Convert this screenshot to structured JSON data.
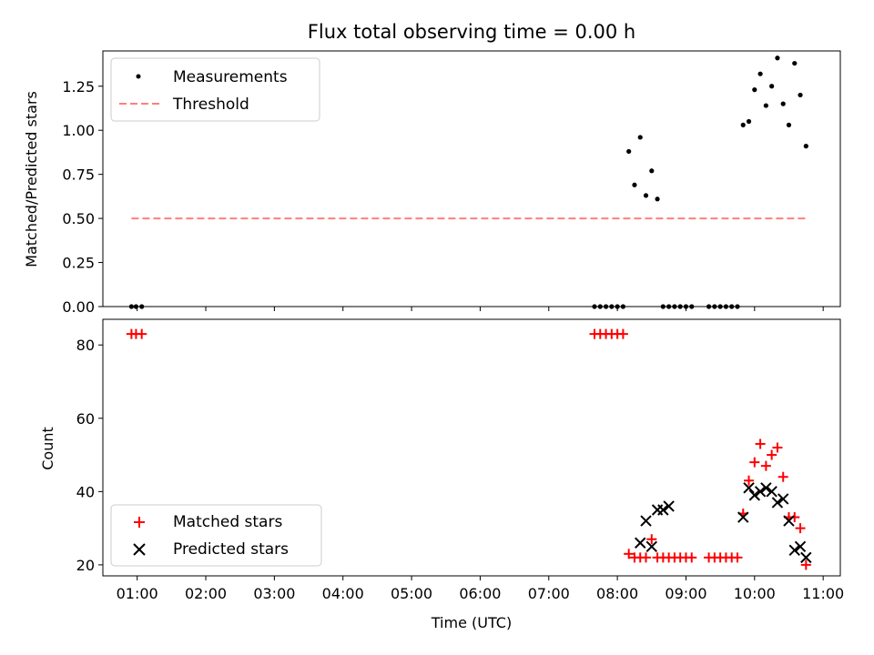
{
  "chart_data": [
    {
      "type": "scatter",
      "title": "Flux total observing time = 0.00 h",
      "xlabel": "",
      "ylabel": "Matched/Predicted stars",
      "ylim": [
        0,
        1.45
      ],
      "xlim": [
        "00:30",
        "11:15"
      ],
      "yticks": [
        0.0,
        0.25,
        0.5,
        0.75,
        1.0,
        1.25
      ],
      "ytick_labels": [
        "0.00",
        "0.25",
        "0.50",
        "0.75",
        "1.00",
        "1.25"
      ],
      "legend_position": "top-left",
      "series": [
        {
          "name": "Measurements",
          "marker": "dot",
          "color": "#000000",
          "x": [
            "00:55",
            "00:59",
            "01:04",
            "07:40",
            "07:45",
            "07:50",
            "07:55",
            "08:00",
            "08:05",
            "08:10",
            "08:15",
            "08:20",
            "08:25",
            "08:30",
            "08:35",
            "08:40",
            "08:45",
            "08:50",
            "08:55",
            "09:00",
            "09:05",
            "09:20",
            "09:25",
            "09:30",
            "09:35",
            "09:40",
            "09:45",
            "09:50",
            "09:55",
            "10:00",
            "10:05",
            "10:10",
            "10:15",
            "10:20",
            "10:25",
            "10:30",
            "10:35",
            "10:40",
            "10:45"
          ],
          "y": [
            0,
            0,
            0,
            0,
            0,
            0,
            0,
            0,
            0,
            0.88,
            0.69,
            0.96,
            0.63,
            0.77,
            0.61,
            0,
            0,
            0,
            0,
            0,
            0,
            0,
            0,
            0,
            0,
            0,
            0,
            1.03,
            1.05,
            1.23,
            1.32,
            1.14,
            1.25,
            1.41,
            1.15,
            1.03,
            1.38,
            1.2,
            0.91
          ]
        },
        {
          "name": "Threshold",
          "line_style": "dashed",
          "color": "#ff7f7f",
          "x": [
            "00:55",
            "10:45"
          ],
          "y": [
            0.5,
            0.5
          ]
        }
      ]
    },
    {
      "type": "scatter",
      "title": "",
      "xlabel": "Time (UTC)",
      "ylabel": "Count",
      "ylim": [
        17,
        87
      ],
      "xlim": [
        "00:30",
        "11:15"
      ],
      "yticks": [
        20,
        40,
        60,
        80
      ],
      "ytick_labels": [
        "20",
        "40",
        "60",
        "80"
      ],
      "xticks": [
        "01:00",
        "02:00",
        "03:00",
        "04:00",
        "05:00",
        "06:00",
        "07:00",
        "08:00",
        "09:00",
        "10:00",
        "11:00"
      ],
      "legend_position": "bottom-left",
      "series": [
        {
          "name": "Matched stars",
          "marker": "plus",
          "color": "#ff0000",
          "x": [
            "00:55",
            "00:59",
            "01:04",
            "07:40",
            "07:45",
            "07:50",
            "07:55",
            "08:00",
            "08:05",
            "08:10",
            "08:15",
            "08:20",
            "08:25",
            "08:30",
            "08:35",
            "08:40",
            "08:45",
            "08:50",
            "08:55",
            "09:00",
            "09:05",
            "09:20",
            "09:25",
            "09:30",
            "09:35",
            "09:40",
            "09:45",
            "09:50",
            "09:55",
            "10:00",
            "10:05",
            "10:10",
            "10:15",
            "10:20",
            "10:25",
            "10:30",
            "10:35",
            "10:40",
            "10:45"
          ],
          "y": [
            83,
            83,
            83,
            83,
            83,
            83,
            83,
            83,
            83,
            23,
            22,
            22,
            22,
            27,
            22,
            22,
            22,
            22,
            22,
            22,
            22,
            22,
            22,
            22,
            22,
            22,
            22,
            34,
            43,
            48,
            53,
            47,
            50,
            52,
            44,
            33,
            33,
            30,
            20
          ]
        },
        {
          "name": "Predicted stars",
          "marker": "x",
          "color": "#000000",
          "x": [
            "08:20",
            "08:25",
            "08:30",
            "08:35",
            "08:40",
            "08:45",
            "09:50",
            "09:55",
            "10:00",
            "10:05",
            "10:10",
            "10:15",
            "10:20",
            "10:25",
            "10:30",
            "10:35",
            "10:40",
            "10:45"
          ],
          "y": [
            26,
            32,
            25,
            35,
            35,
            36,
            33,
            41,
            39,
            40,
            41,
            40,
            37,
            38,
            32,
            24,
            25,
            22
          ]
        }
      ]
    }
  ]
}
